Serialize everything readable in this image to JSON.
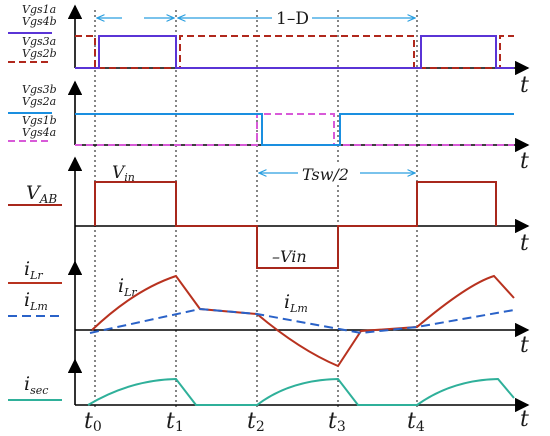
{
  "labels": {
    "panel1_signal_top_a": "Vgs1a",
    "panel1_signal_top_b": "Vgs4b",
    "panel1_signal_bottom_a": "Vgs3a",
    "panel1_signal_bottom_b": "Vgs2b",
    "panel2_signal_top_a": "Vgs3b",
    "panel2_signal_top_b": "Vgs2a",
    "panel2_signal_bottom_a": "Vgs1b",
    "panel2_signal_bottom_b": "Vgs4a",
    "panel3_signal": "VAB",
    "panel3_vin": "Vin",
    "panel3_neg_vin": "–Vin",
    "panel3_half_period": "Tsw/2",
    "panel4_ilr": "iLr",
    "panel4_ilm": "iLm",
    "panel4_ilr_curve": "iLr",
    "panel4_ilm_curve": "iLm",
    "panel5_isec": "isec",
    "duty": "D",
    "one_minus_duty": "1–D",
    "axis_t": "t"
  },
  "time_ticks": [
    "t0",
    "t1",
    "t2",
    "t3",
    "t4"
  ],
  "colors": {
    "purple": "#5a34d6",
    "dark_red": "#b0281c",
    "blue": "#1a8fe0",
    "magenta": "#d85ad8",
    "vab": "#a8281c",
    "ilr": "#b8321f",
    "ilm": "#2a62c8",
    "isec": "#2fb09a",
    "arrow": "#2a9fe0"
  }
}
